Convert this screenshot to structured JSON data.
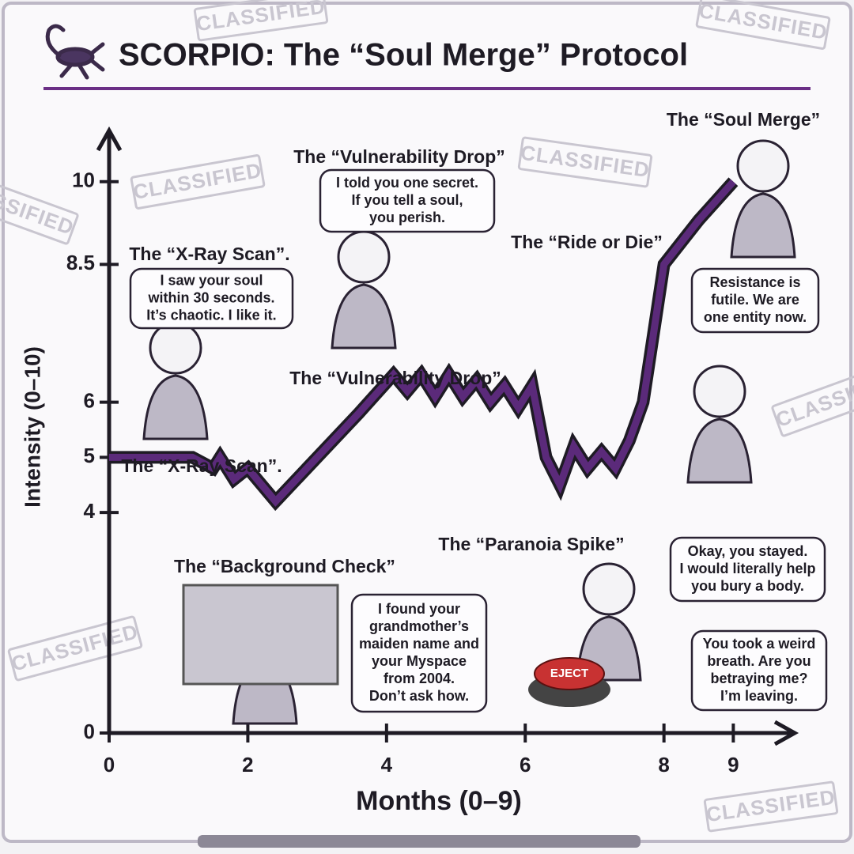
{
  "chart_data": {
    "type": "line",
    "title": "SCORPIO: The “Soul Merge” Protocol",
    "x_label": "Months (0–9)",
    "y_label": "Intensity (0–10)",
    "x": [
      0,
      1.2,
      1.5,
      1.6,
      1.8,
      2.0,
      2.4,
      3.0,
      3.6,
      4.1,
      4.3,
      4.5,
      4.7,
      4.9,
      5.1,
      5.3,
      5.5,
      5.7,
      5.9,
      6.1,
      6.3,
      6.5,
      6.7,
      6.9,
      7.1,
      7.3,
      7.5,
      7.7,
      8.0,
      8.5,
      9.0
    ],
    "values": [
      5,
      5,
      4.8,
      5.0,
      4.6,
      4.8,
      4.2,
      5.0,
      5.8,
      6.5,
      6.2,
      6.5,
      6.1,
      6.5,
      6.1,
      6.4,
      6.0,
      6.3,
      5.9,
      6.3,
      5.0,
      4.5,
      5.2,
      4.8,
      5.1,
      4.8,
      5.3,
      6.0,
      8.5,
      9.3,
      10.0
    ],
    "color": "#5b2a7a",
    "xlim": [
      0,
      9.6
    ],
    "xticks": [
      0,
      2,
      4,
      6,
      8,
      9
    ],
    "ylim": [
      0,
      11
    ],
    "yticks": [
      0,
      4,
      5,
      6,
      8.5,
      10
    ],
    "line_labels": [
      "The “X-Ray Scan”.",
      "The “Vulnerability Drop”"
    ],
    "annotations": [
      {
        "title": "The “X-Ray Scan”.",
        "bubble": [
          "I saw your soul",
          "within 30 seconds.",
          "It’s chaotic. I like it."
        ]
      },
      {
        "title": "The “Vulnerability Drop”",
        "bubble": [
          "I told you one secret.",
          "If you tell a soul,",
          "you perish."
        ]
      },
      {
        "title": "The “Background Check”",
        "bubble": [
          "I found your",
          "grandmother’s",
          "maiden name and",
          "your Myspace",
          "from 2004.",
          "Don’t ask how."
        ]
      },
      {
        "title": "The “Paranoia Spike”",
        "bubble": [
          "You took a weird",
          "breath. Are you",
          "betraying me?",
          "I’m leaving."
        ]
      },
      {
        "title": "The “Ride or Die”",
        "bubble": [
          "Okay, you stayed.",
          "I would literally help",
          "you bury a body."
        ]
      },
      {
        "title": "The “Soul Merge”",
        "bubble": [
          "Resistance is",
          "futile. We are",
          "one entity now."
        ]
      }
    ],
    "stamp": "CLASSIFIED",
    "button_label": "EJECT"
  }
}
